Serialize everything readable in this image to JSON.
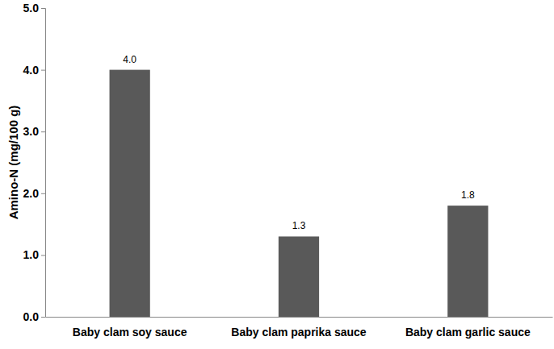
{
  "chart_data": {
    "type": "bar",
    "y_label": "Amino-N (mg/100 g)",
    "categories": [
      "Baby clam soy sauce",
      "Baby clam paprika sauce",
      "Baby clam garlic sauce"
    ],
    "values": [
      4.0,
      1.3,
      1.8
    ],
    "value_labels": [
      "4.0",
      "1.3",
      "1.8"
    ],
    "color": "#595959",
    "ylim": [
      0,
      5
    ],
    "yticks": [
      {
        "value": 0,
        "label": "0.0"
      },
      {
        "value": 1,
        "label": "1.0"
      },
      {
        "value": 2,
        "label": "2.0"
      },
      {
        "value": 3,
        "label": "3.0"
      },
      {
        "value": 4,
        "label": "4.0"
      },
      {
        "value": 5,
        "label": "5.0"
      }
    ],
    "grid": false,
    "data_labels": true
  }
}
